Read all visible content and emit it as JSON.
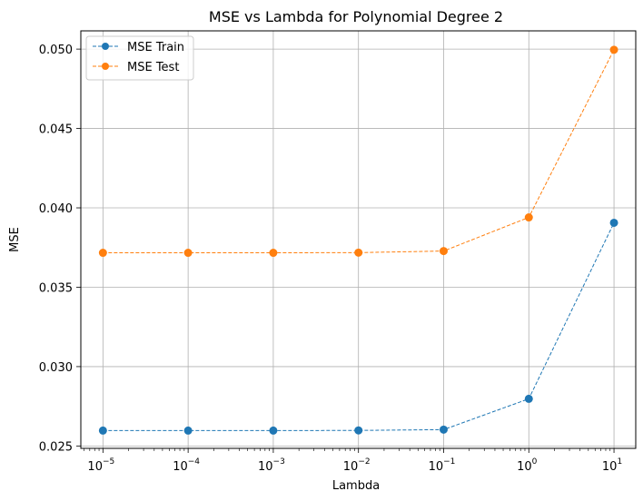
{
  "chart_data": {
    "type": "line",
    "title": "MSE vs Lambda for Polynomial Degree 2",
    "xlabel": "Lambda",
    "ylabel": "MSE",
    "x_scale": "log",
    "x": [
      1e-05,
      0.0001,
      0.001,
      0.01,
      0.1,
      1,
      10
    ],
    "x_tick_labels": [
      {
        "base": "10",
        "exp": "−5"
      },
      {
        "base": "10",
        "exp": "−4"
      },
      {
        "base": "10",
        "exp": "−3"
      },
      {
        "base": "10",
        "exp": "−2"
      },
      {
        "base": "10",
        "exp": "−1"
      },
      {
        "base": "10",
        "exp": "0"
      },
      {
        "base": "10",
        "exp": "1"
      }
    ],
    "y_ticks": [
      0.025,
      0.03,
      0.035,
      0.04,
      0.045,
      0.05
    ],
    "y_tick_labels": [
      "0.025",
      "0.030",
      "0.035",
      "0.040",
      "0.045",
      "0.050"
    ],
    "xlim": [
      5.5e-06,
      18
    ],
    "ylim": [
      0.02485,
      0.05115
    ],
    "grid": true,
    "legend_position": "top-left",
    "series": [
      {
        "name": "MSE Train",
        "color": "#1f77b4",
        "line_style": "dashed",
        "marker": "circle",
        "values": [
          0.02597,
          0.02597,
          0.02597,
          0.02598,
          0.02603,
          0.02797,
          0.03906
        ]
      },
      {
        "name": "MSE Test",
        "color": "#ff7f0e",
        "line_style": "dashed",
        "marker": "circle",
        "values": [
          0.03717,
          0.03717,
          0.03717,
          0.03718,
          0.03728,
          0.0394,
          0.04996
        ]
      }
    ]
  }
}
